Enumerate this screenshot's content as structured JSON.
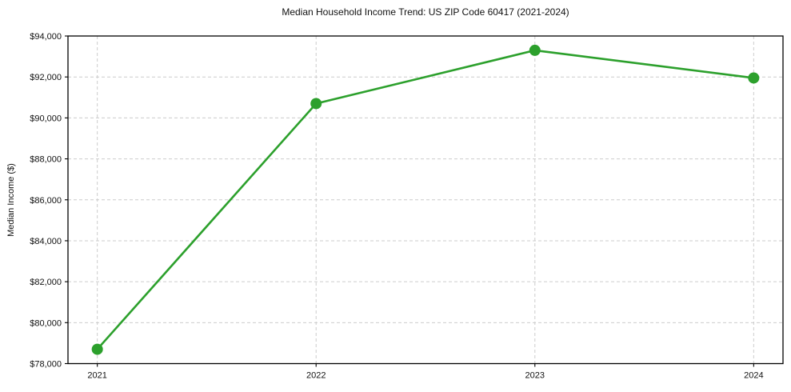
{
  "chart_data": {
    "type": "line",
    "title": "Median Household Income Trend: US ZIP Code 60417 (2021-2024)",
    "ylabel": "Median Income ($)",
    "xlabel": "",
    "categories": [
      "2021",
      "2022",
      "2023",
      "2024"
    ],
    "values": [
      78700,
      90700,
      93300,
      91950
    ],
    "ylim": [
      78000,
      94000
    ],
    "yticks": [
      78000,
      80000,
      82000,
      84000,
      86000,
      88000,
      90000,
      92000,
      94000
    ],
    "ytick_labels": [
      "$78,000",
      "$80,000",
      "$82,000",
      "$84,000",
      "$86,000",
      "$88,000",
      "$90,000",
      "$92,000",
      "$94,000"
    ],
    "legend": "none",
    "grid": "dashed-both-axes",
    "line_color": "#2ca02c",
    "marker": "circle",
    "grid_color": "#cccccc",
    "axis_color": "#000000",
    "background_color": "#ffffff"
  }
}
